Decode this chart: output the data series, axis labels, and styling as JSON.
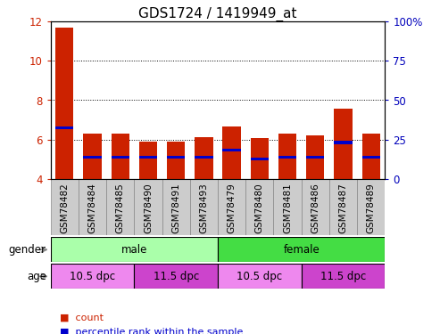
{
  "title": "GDS1724 / 1419949_at",
  "samples": [
    "GSM78482",
    "GSM78484",
    "GSM78485",
    "GSM78490",
    "GSM78491",
    "GSM78493",
    "GSM78479",
    "GSM78480",
    "GSM78481",
    "GSM78486",
    "GSM78487",
    "GSM78489"
  ],
  "count_values": [
    11.7,
    6.3,
    6.3,
    5.9,
    5.9,
    6.1,
    6.65,
    6.05,
    6.3,
    6.2,
    7.55,
    6.3
  ],
  "percentile_values": [
    6.6,
    5.1,
    5.1,
    5.1,
    5.1,
    5.1,
    5.45,
    5.0,
    5.1,
    5.1,
    5.85,
    5.1
  ],
  "blue_bar_height": 0.16,
  "y_min": 4,
  "y_max": 12,
  "y_ticks": [
    4,
    6,
    8,
    10,
    12
  ],
  "right_y_ticks_labels": [
    "0",
    "25",
    "50",
    "75",
    "100%"
  ],
  "right_y_positions": [
    4,
    6,
    8,
    10,
    12
  ],
  "gender_groups": [
    {
      "label": "male",
      "start": 0,
      "end": 6,
      "color": "#AAFFAA"
    },
    {
      "label": "female",
      "start": 6,
      "end": 12,
      "color": "#44DD44"
    }
  ],
  "age_groups": [
    {
      "label": "10.5 dpc",
      "start": 0,
      "end": 3,
      "color": "#EE88EE"
    },
    {
      "label": "11.5 dpc",
      "start": 3,
      "end": 6,
      "color": "#CC44CC"
    },
    {
      "label": "10.5 dpc",
      "start": 6,
      "end": 9,
      "color": "#EE88EE"
    },
    {
      "label": "11.5 dpc",
      "start": 9,
      "end": 12,
      "color": "#CC44CC"
    }
  ],
  "bar_color": "#CC2200",
  "blue_color": "#0000CC",
  "tick_label_color_left": "#CC2200",
  "tick_label_color_right": "#0000BB",
  "xtick_bg_color": "#CCCCCC",
  "legend_items": [
    {
      "label": "count",
      "color": "#CC2200"
    },
    {
      "label": "percentile rank within the sample",
      "color": "#0000CC"
    }
  ],
  "bar_width": 0.65,
  "title_fontsize": 11,
  "axis_fontsize": 8.5,
  "xtick_fontsize": 7.5,
  "row_fontsize": 8.5,
  "legend_fontsize": 8
}
